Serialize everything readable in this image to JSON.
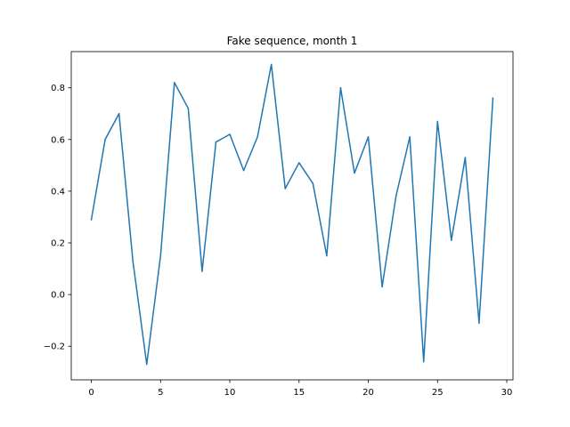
{
  "colors": {
    "series": "#1f77b4",
    "axes": "#000000",
    "background": "#ffffff"
  },
  "chart_data": {
    "type": "line",
    "title": "Fake sequence, month 1",
    "xlabel": "",
    "ylabel": "",
    "grid": false,
    "xlim": [
      -1.45,
      30.45
    ],
    "ylim": [
      -0.33,
      0.94
    ],
    "x_ticks": [
      0,
      5,
      10,
      15,
      20,
      25,
      30
    ],
    "y_ticks": [
      -0.2,
      0.0,
      0.2,
      0.4,
      0.6,
      0.8
    ],
    "x_tick_labels": [
      "0",
      "5",
      "10",
      "15",
      "20",
      "25",
      "30"
    ],
    "y_tick_labels": [
      "−0.2",
      "0.0",
      "0.2",
      "0.4",
      "0.6",
      "0.8"
    ],
    "x": [
      0,
      1,
      2,
      3,
      4,
      5,
      6,
      7,
      8,
      9,
      10,
      11,
      12,
      13,
      14,
      15,
      16,
      17,
      18,
      19,
      20,
      21,
      22,
      23,
      24,
      25,
      26,
      27,
      28,
      29
    ],
    "series": [
      {
        "values": [
          0.29,
          0.6,
          0.7,
          0.13,
          -0.27,
          0.15,
          0.82,
          0.72,
          0.09,
          0.59,
          0.62,
          0.48,
          0.61,
          0.89,
          0.41,
          0.51,
          0.43,
          0.15,
          0.8,
          0.47,
          0.61,
          0.03,
          0.38,
          0.61,
          -0.26,
          0.67,
          0.21,
          0.53,
          -0.11,
          0.76
        ]
      }
    ]
  }
}
